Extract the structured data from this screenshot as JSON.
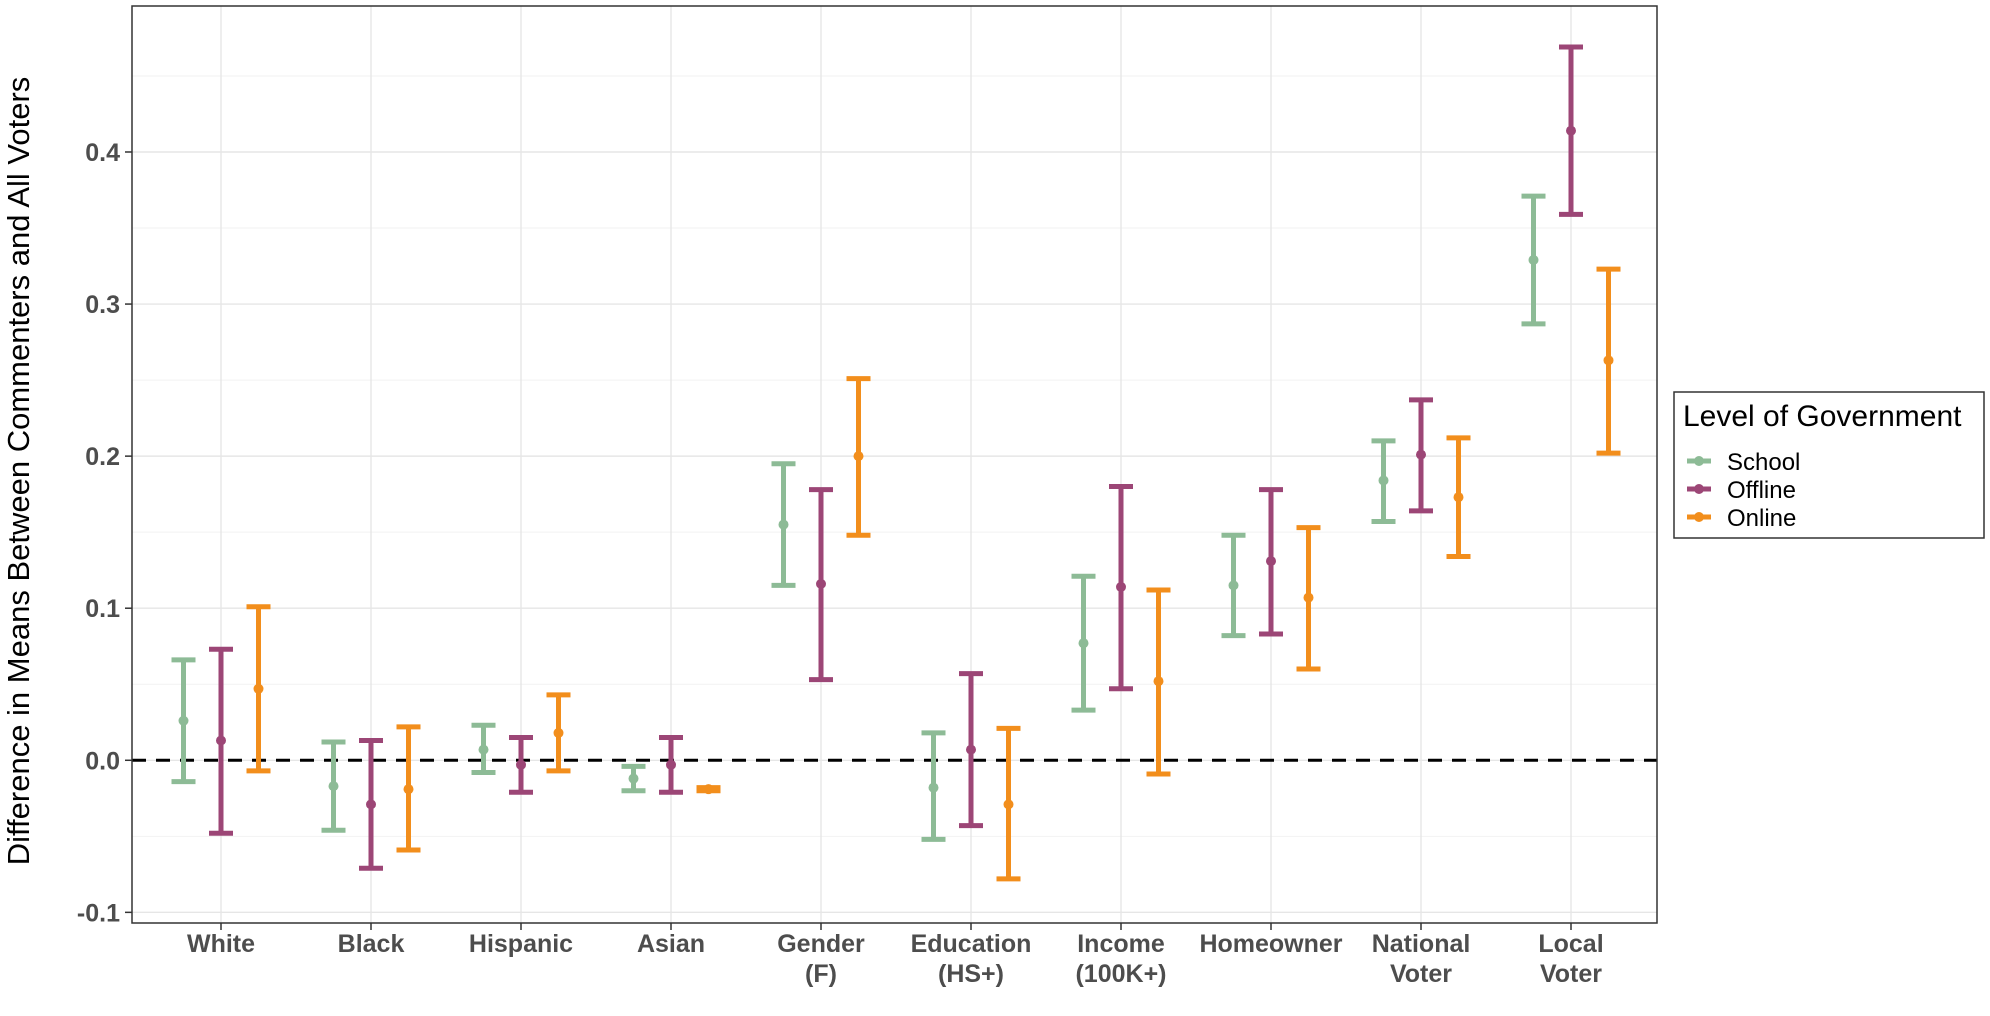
{
  "chart_data": {
    "type": "errorbar",
    "ylabel": "Difference in Means Between Commenters and All Voters",
    "xlabel": "",
    "ylim": [
      -0.107,
      0.496
    ],
    "yticks": [
      -0.1,
      0.0,
      0.1,
      0.2,
      0.3,
      0.4
    ],
    "ytick_labels": [
      "-0.1",
      "0.0",
      "0.1",
      "0.2",
      "0.3",
      "0.4"
    ],
    "reference_line": {
      "y": 0.0,
      "style": "dashed",
      "color": "#000000"
    },
    "grid": true,
    "legend": {
      "title": "Level of Government",
      "position": "right"
    },
    "categories": [
      {
        "lines": [
          "White"
        ]
      },
      {
        "lines": [
          "Black"
        ]
      },
      {
        "lines": [
          "Hispanic"
        ]
      },
      {
        "lines": [
          "Asian"
        ]
      },
      {
        "lines": [
          "Gender",
          "(F)"
        ]
      },
      {
        "lines": [
          "Education",
          "(HS+)"
        ]
      },
      {
        "lines": [
          "Income",
          "(100K+)"
        ]
      },
      {
        "lines": [
          "Homeowner"
        ]
      },
      {
        "lines": [
          "National",
          "Voter"
        ]
      },
      {
        "lines": [
          "Local",
          "Voter"
        ]
      }
    ],
    "series": [
      {
        "name": "School",
        "color": "#8dbb96",
        "estimate": [
          0.026,
          -0.017,
          0.007,
          -0.012,
          0.155,
          -0.018,
          0.077,
          0.115,
          0.184,
          0.329
        ],
        "lower": [
          -0.014,
          -0.046,
          -0.008,
          -0.02,
          0.115,
          -0.052,
          0.033,
          0.082,
          0.157,
          0.287
        ],
        "upper": [
          0.066,
          0.012,
          0.023,
          -0.004,
          0.195,
          0.018,
          0.121,
          0.148,
          0.21,
          0.371
        ]
      },
      {
        "name": "Offline",
        "color": "#9c4676",
        "estimate": [
          0.013,
          -0.029,
          -0.003,
          -0.003,
          0.116,
          0.007,
          0.114,
          0.131,
          0.201,
          0.414
        ],
        "lower": [
          -0.048,
          -0.071,
          -0.021,
          -0.021,
          0.053,
          -0.043,
          0.047,
          0.083,
          0.164,
          0.359
        ],
        "upper": [
          0.073,
          0.013,
          0.015,
          0.015,
          0.178,
          0.057,
          0.18,
          0.178,
          0.237,
          0.469
        ]
      },
      {
        "name": "Online",
        "color": "#f28e1c",
        "estimate": [
          0.047,
          -0.019,
          0.018,
          -0.019,
          0.2,
          -0.029,
          0.052,
          0.107,
          0.173,
          0.263
        ],
        "lower": [
          -0.007,
          -0.059,
          -0.007,
          -0.02,
          0.148,
          -0.078,
          -0.009,
          0.06,
          0.134,
          0.202
        ],
        "upper": [
          0.101,
          0.022,
          0.043,
          -0.018,
          0.251,
          0.021,
          0.112,
          0.153,
          0.212,
          0.323
        ]
      }
    ]
  }
}
